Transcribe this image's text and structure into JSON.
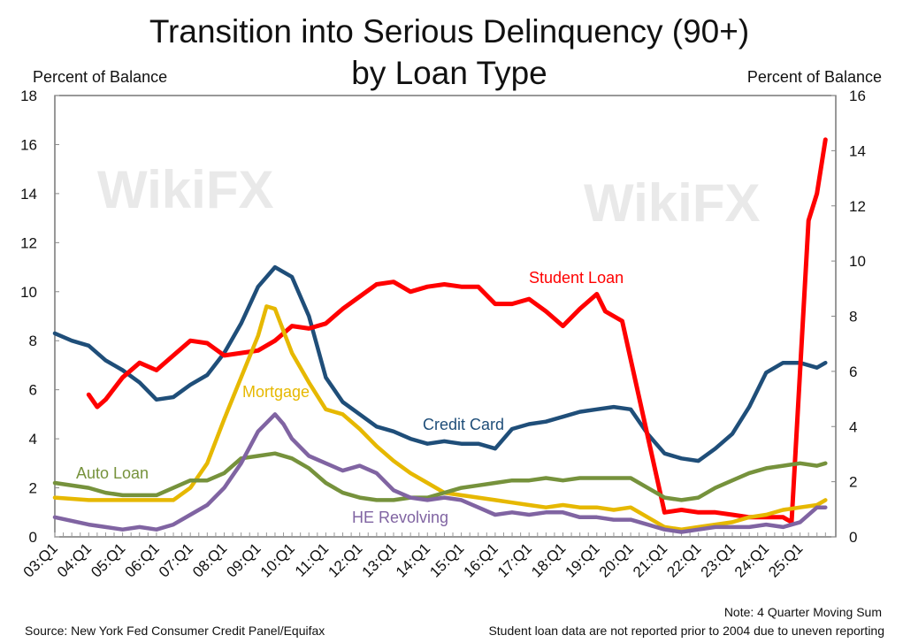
{
  "watermark": "WikiFX",
  "chart_data": {
    "type": "line",
    "title": "Transition into Serious Delinquency (90+)",
    "subtitle": "by Loan Type",
    "ylabel_left": "Percent of Balance",
    "ylabel_right": "Percent of Balance",
    "ylim_left": [
      0,
      18
    ],
    "ylim_right": [
      0,
      16
    ],
    "yticks_left": [
      "0",
      "2",
      "4",
      "6",
      "8",
      "10",
      "12",
      "14",
      "16",
      "18"
    ],
    "yticks_right": [
      "0",
      "2",
      "4",
      "6",
      "8",
      "10",
      "12",
      "14",
      "16"
    ],
    "xticks": [
      "03:Q1",
      "04:Q1",
      "05:Q1",
      "06:Q1",
      "07:Q1",
      "08:Q1",
      "09:Q1",
      "10:Q1",
      "11:Q1",
      "12:Q1",
      "13:Q1",
      "14:Q1",
      "15:Q1",
      "16:Q1",
      "17:Q1",
      "18:Q1",
      "19:Q1",
      "20:Q1",
      "21:Q1",
      "22:Q1",
      "23:Q1",
      "24:Q1",
      "25:Q1"
    ],
    "grid": false,
    "series": [
      {
        "name": "Credit Card",
        "color": "#1f4e79",
        "points": [
          [
            "03:Q1",
            8.3
          ],
          [
            "03:Q3",
            8.0
          ],
          [
            "04:Q1",
            7.8
          ],
          [
            "04:Q3",
            7.2
          ],
          [
            "05:Q1",
            6.8
          ],
          [
            "05:Q3",
            6.3
          ],
          [
            "06:Q1",
            5.6
          ],
          [
            "06:Q3",
            5.7
          ],
          [
            "07:Q1",
            6.2
          ],
          [
            "07:Q3",
            6.6
          ],
          [
            "08:Q1",
            7.5
          ],
          [
            "08:Q3",
            8.7
          ],
          [
            "09:Q1",
            10.2
          ],
          [
            "09:Q3",
            11.0
          ],
          [
            "10:Q1",
            10.6
          ],
          [
            "10:Q3",
            9.0
          ],
          [
            "11:Q1",
            6.5
          ],
          [
            "11:Q3",
            5.5
          ],
          [
            "12:Q1",
            5.0
          ],
          [
            "12:Q3",
            4.5
          ],
          [
            "13:Q1",
            4.3
          ],
          [
            "13:Q3",
            4.0
          ],
          [
            "14:Q1",
            3.8
          ],
          [
            "14:Q3",
            3.9
          ],
          [
            "15:Q1",
            3.8
          ],
          [
            "15:Q3",
            3.8
          ],
          [
            "16:Q1",
            3.6
          ],
          [
            "16:Q3",
            4.4
          ],
          [
            "17:Q1",
            4.6
          ],
          [
            "17:Q3",
            4.7
          ],
          [
            "18:Q1",
            4.9
          ],
          [
            "18:Q3",
            5.1
          ],
          [
            "19:Q1",
            5.2
          ],
          [
            "19:Q3",
            5.3
          ],
          [
            "20:Q1",
            5.2
          ],
          [
            "20:Q3",
            4.2
          ],
          [
            "21:Q1",
            3.4
          ],
          [
            "21:Q3",
            3.2
          ],
          [
            "22:Q1",
            3.1
          ],
          [
            "22:Q3",
            3.6
          ],
          [
            "23:Q1",
            4.2
          ],
          [
            "23:Q3",
            5.3
          ],
          [
            "24:Q1",
            6.7
          ],
          [
            "24:Q3",
            7.1
          ],
          [
            "25:Q1",
            7.1
          ],
          [
            "25:Q3",
            6.9
          ],
          [
            "25:Q4",
            7.1
          ]
        ]
      },
      {
        "name": "Student Loan",
        "color": "#ff0000",
        "points": [
          [
            "04:Q1",
            5.8
          ],
          [
            "04:Q2",
            5.3
          ],
          [
            "04:Q3",
            5.6
          ],
          [
            "05:Q1",
            6.5
          ],
          [
            "05:Q3",
            7.1
          ],
          [
            "06:Q1",
            6.8
          ],
          [
            "06:Q3",
            7.4
          ],
          [
            "07:Q1",
            8.0
          ],
          [
            "07:Q3",
            7.9
          ],
          [
            "08:Q1",
            7.4
          ],
          [
            "08:Q3",
            7.5
          ],
          [
            "09:Q1",
            7.6
          ],
          [
            "09:Q3",
            8.0
          ],
          [
            "10:Q1",
            8.6
          ],
          [
            "10:Q3",
            8.5
          ],
          [
            "11:Q1",
            8.7
          ],
          [
            "11:Q3",
            9.3
          ],
          [
            "12:Q1",
            9.8
          ],
          [
            "12:Q3",
            10.3
          ],
          [
            "13:Q1",
            10.4
          ],
          [
            "13:Q3",
            10.0
          ],
          [
            "14:Q1",
            10.2
          ],
          [
            "14:Q3",
            10.3
          ],
          [
            "15:Q1",
            10.2
          ],
          [
            "15:Q3",
            10.2
          ],
          [
            "16:Q1",
            9.5
          ],
          [
            "16:Q3",
            9.5
          ],
          [
            "17:Q1",
            9.7
          ],
          [
            "17:Q3",
            9.2
          ],
          [
            "18:Q1",
            8.6
          ],
          [
            "18:Q3",
            9.3
          ],
          [
            "19:Q1",
            9.9
          ],
          [
            "19:Q2",
            9.2
          ],
          [
            "19:Q4",
            8.8
          ],
          [
            "21:Q1",
            1.0
          ],
          [
            "21:Q3",
            1.1
          ],
          [
            "22:Q1",
            1.0
          ],
          [
            "22:Q3",
            1.0
          ],
          [
            "23:Q1",
            0.9
          ],
          [
            "23:Q3",
            0.8
          ],
          [
            "24:Q1",
            0.8
          ],
          [
            "24:Q3",
            0.8
          ],
          [
            "24:Q4",
            0.6
          ],
          [
            "25:Q2",
            12.9
          ],
          [
            "25:Q3",
            14.0
          ],
          [
            "25:Q4",
            16.2
          ]
        ]
      },
      {
        "name": "Mortgage",
        "color": "#e6b800",
        "points": [
          [
            "03:Q1",
            1.6
          ],
          [
            "04:Q1",
            1.5
          ],
          [
            "05:Q1",
            1.5
          ],
          [
            "06:Q1",
            1.5
          ],
          [
            "06:Q3",
            1.5
          ],
          [
            "07:Q1",
            2.0
          ],
          [
            "07:Q3",
            3.0
          ],
          [
            "08:Q1",
            4.8
          ],
          [
            "08:Q3",
            6.5
          ],
          [
            "09:Q1",
            8.2
          ],
          [
            "09:Q2",
            9.4
          ],
          [
            "09:Q3",
            9.3
          ],
          [
            "10:Q1",
            7.5
          ],
          [
            "10:Q3",
            6.3
          ],
          [
            "11:Q1",
            5.2
          ],
          [
            "11:Q3",
            5.0
          ],
          [
            "12:Q1",
            4.4
          ],
          [
            "12:Q3",
            3.7
          ],
          [
            "13:Q1",
            3.1
          ],
          [
            "13:Q3",
            2.6
          ],
          [
            "14:Q1",
            2.2
          ],
          [
            "14:Q3",
            1.8
          ],
          [
            "15:Q1",
            1.7
          ],
          [
            "15:Q3",
            1.6
          ],
          [
            "16:Q1",
            1.5
          ],
          [
            "16:Q3",
            1.4
          ],
          [
            "17:Q1",
            1.3
          ],
          [
            "17:Q3",
            1.2
          ],
          [
            "18:Q1",
            1.3
          ],
          [
            "18:Q3",
            1.2
          ],
          [
            "19:Q1",
            1.2
          ],
          [
            "19:Q3",
            1.1
          ],
          [
            "20:Q1",
            1.2
          ],
          [
            "20:Q3",
            0.8
          ],
          [
            "21:Q1",
            0.4
          ],
          [
            "21:Q3",
            0.3
          ],
          [
            "22:Q1",
            0.4
          ],
          [
            "22:Q3",
            0.5
          ],
          [
            "23:Q1",
            0.6
          ],
          [
            "23:Q3",
            0.8
          ],
          [
            "24:Q1",
            0.9
          ],
          [
            "24:Q3",
            1.1
          ],
          [
            "25:Q1",
            1.2
          ],
          [
            "25:Q3",
            1.3
          ],
          [
            "25:Q4",
            1.5
          ]
        ]
      },
      {
        "name": "Auto Loan",
        "color": "#76923c",
        "points": [
          [
            "03:Q1",
            2.2
          ],
          [
            "04:Q1",
            2.0
          ],
          [
            "04:Q3",
            1.8
          ],
          [
            "05:Q1",
            1.7
          ],
          [
            "06:Q1",
            1.7
          ],
          [
            "06:Q3",
            2.0
          ],
          [
            "07:Q1",
            2.3
          ],
          [
            "07:Q3",
            2.3
          ],
          [
            "08:Q1",
            2.6
          ],
          [
            "08:Q3",
            3.2
          ],
          [
            "09:Q1",
            3.3
          ],
          [
            "09:Q3",
            3.4
          ],
          [
            "10:Q1",
            3.2
          ],
          [
            "10:Q3",
            2.8
          ],
          [
            "11:Q1",
            2.2
          ],
          [
            "11:Q3",
            1.8
          ],
          [
            "12:Q1",
            1.6
          ],
          [
            "12:Q3",
            1.5
          ],
          [
            "13:Q1",
            1.5
          ],
          [
            "13:Q3",
            1.6
          ],
          [
            "14:Q1",
            1.6
          ],
          [
            "14:Q3",
            1.8
          ],
          [
            "15:Q1",
            2.0
          ],
          [
            "15:Q3",
            2.1
          ],
          [
            "16:Q1",
            2.2
          ],
          [
            "16:Q3",
            2.3
          ],
          [
            "17:Q1",
            2.3
          ],
          [
            "17:Q3",
            2.4
          ],
          [
            "18:Q1",
            2.3
          ],
          [
            "18:Q3",
            2.4
          ],
          [
            "19:Q1",
            2.4
          ],
          [
            "19:Q3",
            2.4
          ],
          [
            "20:Q1",
            2.4
          ],
          [
            "20:Q3",
            2.0
          ],
          [
            "21:Q1",
            1.6
          ],
          [
            "21:Q3",
            1.5
          ],
          [
            "22:Q1",
            1.6
          ],
          [
            "22:Q3",
            2.0
          ],
          [
            "23:Q1",
            2.3
          ],
          [
            "23:Q3",
            2.6
          ],
          [
            "24:Q1",
            2.8
          ],
          [
            "24:Q3",
            2.9
          ],
          [
            "25:Q1",
            3.0
          ],
          [
            "25:Q3",
            2.9
          ],
          [
            "25:Q4",
            3.0
          ]
        ]
      },
      {
        "name": "HE Revolving",
        "color": "#8064a2",
        "points": [
          [
            "03:Q1",
            0.8
          ],
          [
            "04:Q1",
            0.5
          ],
          [
            "04:Q3",
            0.4
          ],
          [
            "05:Q1",
            0.3
          ],
          [
            "05:Q3",
            0.4
          ],
          [
            "06:Q1",
            0.3
          ],
          [
            "06:Q3",
            0.5
          ],
          [
            "07:Q1",
            0.9
          ],
          [
            "07:Q3",
            1.3
          ],
          [
            "08:Q1",
            2.0
          ],
          [
            "08:Q3",
            3.0
          ],
          [
            "09:Q1",
            4.3
          ],
          [
            "09:Q3",
            5.0
          ],
          [
            "09:Q4",
            4.6
          ],
          [
            "10:Q1",
            4.0
          ],
          [
            "10:Q3",
            3.3
          ],
          [
            "11:Q1",
            3.0
          ],
          [
            "11:Q3",
            2.7
          ],
          [
            "12:Q1",
            2.9
          ],
          [
            "12:Q3",
            2.6
          ],
          [
            "13:Q1",
            1.9
          ],
          [
            "13:Q3",
            1.6
          ],
          [
            "14:Q1",
            1.5
          ],
          [
            "14:Q3",
            1.6
          ],
          [
            "15:Q1",
            1.5
          ],
          [
            "15:Q3",
            1.2
          ],
          [
            "16:Q1",
            0.9
          ],
          [
            "16:Q3",
            1.0
          ],
          [
            "17:Q1",
            0.9
          ],
          [
            "17:Q3",
            1.0
          ],
          [
            "18:Q1",
            1.0
          ],
          [
            "18:Q3",
            0.8
          ],
          [
            "19:Q1",
            0.8
          ],
          [
            "19:Q3",
            0.7
          ],
          [
            "20:Q1",
            0.7
          ],
          [
            "20:Q3",
            0.5
          ],
          [
            "21:Q1",
            0.3
          ],
          [
            "21:Q3",
            0.2
          ],
          [
            "22:Q1",
            0.3
          ],
          [
            "22:Q3",
            0.4
          ],
          [
            "23:Q1",
            0.4
          ],
          [
            "23:Q3",
            0.4
          ],
          [
            "24:Q1",
            0.5
          ],
          [
            "24:Q3",
            0.4
          ],
          [
            "25:Q1",
            0.6
          ],
          [
            "25:Q3",
            1.2
          ],
          [
            "25:Q4",
            1.2
          ]
        ]
      }
    ],
    "annotations": {
      "note": "Note: 4 Quarter Moving Sum",
      "source": "Source: New York Fed Consumer Credit Panel/Equifax",
      "footnote": "Student loan data are not reported prior to 2004 due to uneven reporting"
    }
  }
}
